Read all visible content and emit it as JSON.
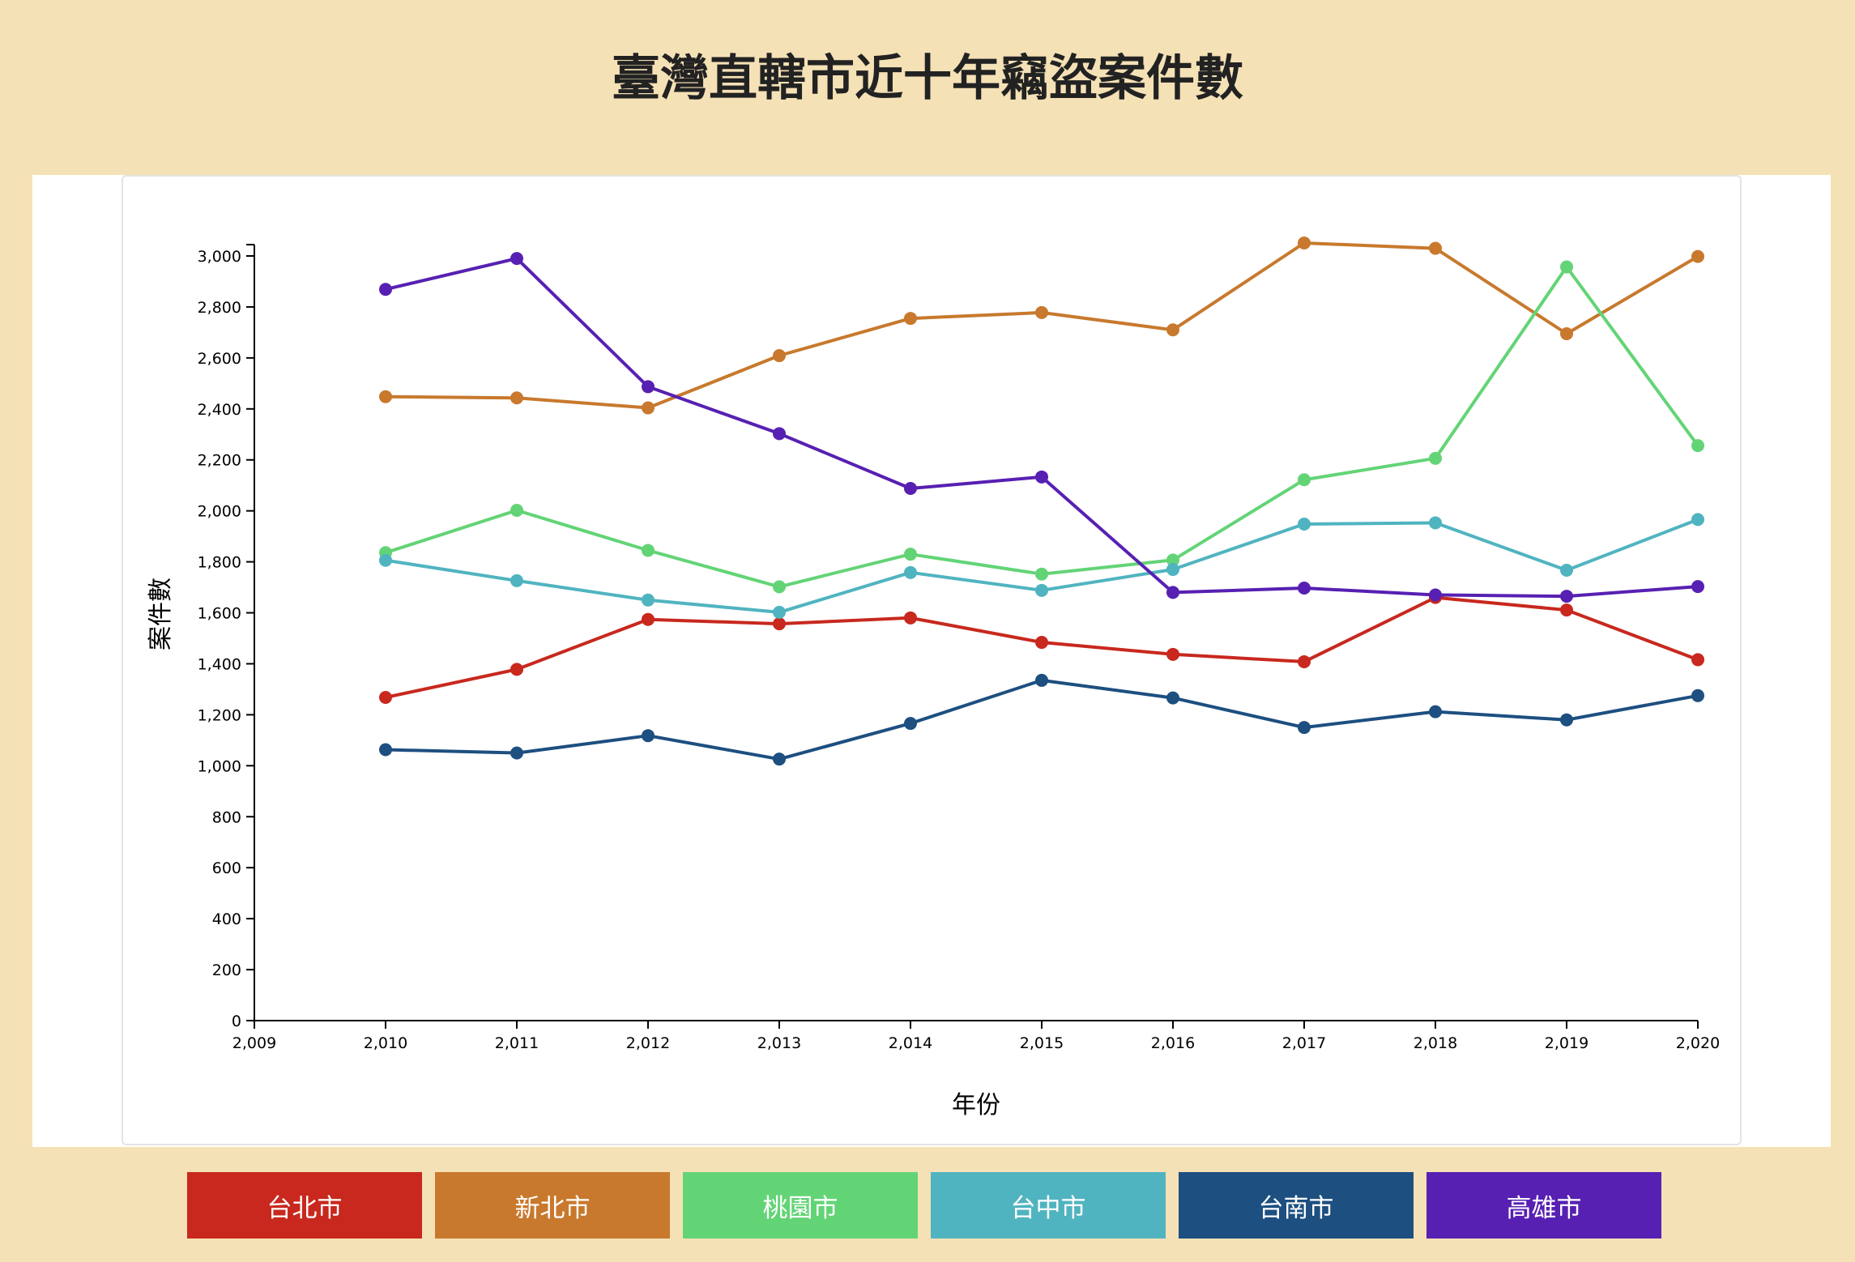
{
  "chart_data": {
    "type": "line",
    "title": "臺灣直轄市近十年竊盜案件數",
    "xlabel": "年份",
    "ylabel": "案件數",
    "xlim": [
      2009,
      2020
    ],
    "ylim": [
      0,
      3000
    ],
    "x_ticks": [
      "2,009",
      "2,010",
      "2,011",
      "2,012",
      "2,013",
      "2,014",
      "2,015",
      "2,016",
      "2,017",
      "2,018",
      "2,019",
      "2,020"
    ],
    "y_ticks": [
      "0",
      "200",
      "400",
      "600",
      "800",
      "1,000",
      "1,200",
      "1,400",
      "1,600",
      "1,800",
      "2,000",
      "2,200",
      "2,400",
      "2,600",
      "2,800",
      "3,000"
    ],
    "x": [
      2010,
      2011,
      2012,
      2013,
      2014,
      2015,
      2016,
      2017,
      2018,
      2019,
      2020
    ],
    "series": [
      {
        "name": "台北市",
        "color": "#c8281e",
        "values": [
          1268,
          1378,
          1574,
          1557,
          1580,
          1484,
          1437,
          1408,
          1660,
          1611,
          1416
        ]
      },
      {
        "name": "新北市",
        "color": "#c8792d",
        "values": [
          2448,
          2443,
          2404,
          2609,
          2755,
          2778,
          2710,
          3051,
          3030,
          2695,
          2998
        ]
      },
      {
        "name": "桃園市",
        "color": "#63d476",
        "values": [
          1836,
          2002,
          1845,
          1702,
          1830,
          1752,
          1807,
          2122,
          2206,
          2957,
          2256
        ]
      },
      {
        "name": "台中市",
        "color": "#50b4c0",
        "values": [
          1806,
          1726,
          1650,
          1602,
          1758,
          1688,
          1770,
          1948,
          1953,
          1767,
          1966
        ]
      },
      {
        "name": "台南市",
        "color": "#1d4f80",
        "values": [
          1063,
          1050,
          1118,
          1026,
          1166,
          1335,
          1266,
          1150,
          1212,
          1180,
          1275
        ]
      },
      {
        "name": "高雄市",
        "color": "#5720b2",
        "values": [
          2869,
          2990,
          2487,
          2303,
          2088,
          2133,
          1680,
          1697,
          1670,
          1665,
          1703
        ]
      }
    ],
    "grid": false,
    "legend": "bottom"
  },
  "legend": [
    "台北市",
    "新北市",
    "桃園市",
    "台中市",
    "台南市",
    "高雄市"
  ]
}
